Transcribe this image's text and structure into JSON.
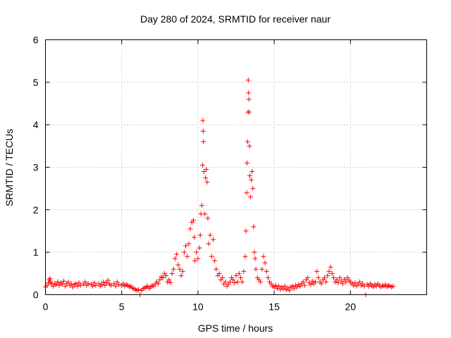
{
  "chart_data": {
    "type": "scatter",
    "title": "Day 280 of 2024, SRMTID for receiver naur",
    "xlabel": "GPS time / hours",
    "ylabel": "SRMTID / TECUs",
    "xlim": [
      0,
      25
    ],
    "ylim": [
      0,
      6
    ],
    "xticks": [
      0,
      5,
      10,
      15,
      20
    ],
    "yticks": [
      0,
      1,
      2,
      3,
      4,
      5,
      6
    ],
    "grid": true,
    "marker": "plus",
    "series": [
      {
        "name": "SRMTID",
        "color": "#ff0000",
        "points": [
          [
            0.0,
            0.18
          ],
          [
            0.1,
            0.22
          ],
          [
            0.2,
            0.28
          ],
          [
            0.25,
            0.35
          ],
          [
            0.3,
            0.38
          ],
          [
            0.35,
            0.3
          ],
          [
            0.4,
            0.25
          ],
          [
            0.5,
            0.2
          ],
          [
            0.6,
            0.26
          ],
          [
            0.7,
            0.24
          ],
          [
            0.8,
            0.3
          ],
          [
            0.9,
            0.22
          ],
          [
            1.0,
            0.28
          ],
          [
            1.1,
            0.25
          ],
          [
            1.2,
            0.32
          ],
          [
            1.3,
            0.2
          ],
          [
            1.4,
            0.26
          ],
          [
            1.5,
            0.3
          ],
          [
            1.6,
            0.22
          ],
          [
            1.7,
            0.25
          ],
          [
            1.8,
            0.18
          ],
          [
            1.9,
            0.24
          ],
          [
            2.0,
            0.26
          ],
          [
            2.1,
            0.2
          ],
          [
            2.2,
            0.28
          ],
          [
            2.3,
            0.22
          ],
          [
            2.5,
            0.25
          ],
          [
            2.6,
            0.3
          ],
          [
            2.7,
            0.22
          ],
          [
            2.8,
            0.26
          ],
          [
            3.0,
            0.24
          ],
          [
            3.1,
            0.2
          ],
          [
            3.2,
            0.28
          ],
          [
            3.3,
            0.22
          ],
          [
            3.5,
            0.26
          ],
          [
            3.6,
            0.2
          ],
          [
            3.7,
            0.24
          ],
          [
            3.8,
            0.3
          ],
          [
            3.9,
            0.22
          ],
          [
            4.0,
            0.28
          ],
          [
            4.1,
            0.34
          ],
          [
            4.2,
            0.25
          ],
          [
            4.3,
            0.22
          ],
          [
            4.5,
            0.26
          ],
          [
            4.6,
            0.2
          ],
          [
            4.7,
            0.3
          ],
          [
            4.8,
            0.24
          ],
          [
            5.0,
            0.22
          ],
          [
            5.1,
            0.26
          ],
          [
            5.2,
            0.2
          ],
          [
            5.3,
            0.24
          ],
          [
            5.4,
            0.22
          ],
          [
            5.5,
            0.18
          ],
          [
            5.6,
            0.2
          ],
          [
            5.7,
            0.16
          ],
          [
            5.8,
            0.14
          ],
          [
            5.9,
            0.12
          ],
          [
            6.0,
            0.1
          ],
          [
            6.1,
            0.12
          ],
          [
            6.2,
            0.0
          ],
          [
            6.3,
            0.1
          ],
          [
            6.4,
            0.14
          ],
          [
            6.5,
            0.16
          ],
          [
            6.6,
            0.18
          ],
          [
            6.7,
            0.2
          ],
          [
            6.8,
            0.15
          ],
          [
            6.9,
            0.18
          ],
          [
            7.0,
            0.22
          ],
          [
            7.1,
            0.2
          ],
          [
            7.2,
            0.25
          ],
          [
            7.3,
            0.3
          ],
          [
            7.4,
            0.26
          ],
          [
            7.5,
            0.35
          ],
          [
            7.6,
            0.42
          ],
          [
            7.7,
            0.4
          ],
          [
            7.8,
            0.5
          ],
          [
            7.9,
            0.45
          ],
          [
            8.0,
            0.3
          ],
          [
            8.1,
            0.35
          ],
          [
            8.2,
            0.28
          ],
          [
            8.3,
            0.5
          ],
          [
            8.4,
            0.6
          ],
          [
            8.5,
            0.85
          ],
          [
            8.6,
            0.95
          ],
          [
            8.7,
            0.7
          ],
          [
            8.8,
            0.6
          ],
          [
            8.9,
            0.45
          ],
          [
            9.0,
            0.55
          ],
          [
            9.1,
            1.0
          ],
          [
            9.2,
            1.15
          ],
          [
            9.3,
            0.9
          ],
          [
            9.4,
            1.2
          ],
          [
            9.5,
            1.55
          ],
          [
            9.6,
            1.7
          ],
          [
            9.7,
            1.75
          ],
          [
            9.75,
            1.35
          ],
          [
            9.8,
            0.8
          ],
          [
            9.9,
            1.0
          ],
          [
            10.0,
            0.85
          ],
          [
            10.1,
            1.1
          ],
          [
            10.15,
            1.4
          ],
          [
            10.2,
            1.9
          ],
          [
            10.25,
            2.1
          ],
          [
            10.3,
            3.05
          ],
          [
            10.32,
            4.1
          ],
          [
            10.34,
            3.85
          ],
          [
            10.36,
            3.6
          ],
          [
            10.4,
            2.9
          ],
          [
            10.45,
            1.9
          ],
          [
            10.5,
            2.75
          ],
          [
            10.55,
            2.95
          ],
          [
            10.6,
            2.65
          ],
          [
            10.65,
            1.8
          ],
          [
            10.7,
            1.2
          ],
          [
            10.8,
            1.4
          ],
          [
            10.9,
            0.9
          ],
          [
            11.0,
            1.3
          ],
          [
            11.1,
            0.8
          ],
          [
            11.2,
            0.6
          ],
          [
            11.3,
            0.45
          ],
          [
            11.4,
            0.5
          ],
          [
            11.5,
            0.35
          ],
          [
            11.6,
            0.4
          ],
          [
            11.7,
            0.25
          ],
          [
            11.8,
            0.3
          ],
          [
            11.9,
            0.2
          ],
          [
            12.0,
            0.25
          ],
          [
            12.1,
            0.3
          ],
          [
            12.2,
            0.4
          ],
          [
            12.3,
            0.35
          ],
          [
            12.4,
            0.28
          ],
          [
            12.5,
            0.45
          ],
          [
            12.6,
            0.3
          ],
          [
            12.7,
            0.5
          ],
          [
            12.8,
            0.4
          ],
          [
            12.9,
            0.3
          ],
          [
            13.0,
            0.55
          ],
          [
            13.1,
            0.9
          ],
          [
            13.15,
            1.5
          ],
          [
            13.2,
            2.4
          ],
          [
            13.22,
            3.1
          ],
          [
            13.25,
            3.6
          ],
          [
            13.28,
            4.3
          ],
          [
            13.3,
            5.05
          ],
          [
            13.32,
            4.75
          ],
          [
            13.34,
            4.6
          ],
          [
            13.36,
            4.3
          ],
          [
            13.38,
            3.5
          ],
          [
            13.4,
            2.8
          ],
          [
            13.45,
            2.3
          ],
          [
            13.5,
            2.7
          ],
          [
            13.55,
            2.9
          ],
          [
            13.6,
            2.5
          ],
          [
            13.65,
            1.6
          ],
          [
            13.7,
            1.0
          ],
          [
            13.75,
            0.85
          ],
          [
            13.8,
            0.6
          ],
          [
            13.9,
            0.4
          ],
          [
            14.0,
            0.35
          ],
          [
            14.1,
            0.3
          ],
          [
            14.2,
            0.6
          ],
          [
            14.3,
            0.9
          ],
          [
            14.4,
            0.75
          ],
          [
            14.5,
            0.55
          ],
          [
            14.6,
            0.4
          ],
          [
            14.7,
            0.3
          ],
          [
            14.8,
            0.25
          ],
          [
            14.9,
            0.2
          ],
          [
            15.0,
            0.18
          ],
          [
            15.1,
            0.22
          ],
          [
            15.2,
            0.15
          ],
          [
            15.3,
            0.2
          ],
          [
            15.4,
            0.12
          ],
          [
            15.5,
            0.18
          ],
          [
            15.6,
            0.14
          ],
          [
            15.7,
            0.2
          ],
          [
            15.8,
            0.12
          ],
          [
            15.9,
            0.16
          ],
          [
            16.0,
            0.1
          ],
          [
            16.1,
            0.18
          ],
          [
            16.2,
            0.2
          ],
          [
            16.3,
            0.14
          ],
          [
            16.4,
            0.22
          ],
          [
            16.5,
            0.18
          ],
          [
            16.6,
            0.24
          ],
          [
            16.7,
            0.2
          ],
          [
            16.8,
            0.26
          ],
          [
            16.9,
            0.3
          ],
          [
            17.0,
            0.22
          ],
          [
            17.1,
            0.35
          ],
          [
            17.2,
            0.4
          ],
          [
            17.3,
            0.28
          ],
          [
            17.4,
            0.24
          ],
          [
            17.5,
            0.32
          ],
          [
            17.6,
            0.26
          ],
          [
            17.7,
            0.3
          ],
          [
            17.8,
            0.55
          ],
          [
            17.9,
            0.4
          ],
          [
            18.0,
            0.3
          ],
          [
            18.1,
            0.26
          ],
          [
            18.2,
            0.35
          ],
          [
            18.3,
            0.4
          ],
          [
            18.4,
            0.3
          ],
          [
            18.5,
            0.45
          ],
          [
            18.6,
            0.55
          ],
          [
            18.7,
            0.65
          ],
          [
            18.8,
            0.5
          ],
          [
            18.9,
            0.4
          ],
          [
            19.0,
            0.3
          ],
          [
            19.1,
            0.35
          ],
          [
            19.2,
            0.28
          ],
          [
            19.3,
            0.4
          ],
          [
            19.4,
            0.32
          ],
          [
            19.5,
            0.26
          ],
          [
            19.6,
            0.36
          ],
          [
            19.7,
            0.3
          ],
          [
            19.8,
            0.4
          ],
          [
            19.9,
            0.34
          ],
          [
            20.0,
            0.3
          ],
          [
            20.1,
            0.26
          ],
          [
            20.2,
            0.22
          ],
          [
            20.3,
            0.28
          ],
          [
            20.4,
            0.2
          ],
          [
            20.5,
            0.25
          ],
          [
            20.6,
            0.3
          ],
          [
            20.7,
            0.22
          ],
          [
            20.8,
            0.26
          ],
          [
            20.9,
            0.2
          ],
          [
            21.0,
            0.0
          ],
          [
            21.1,
            0.24
          ],
          [
            21.2,
            0.2
          ],
          [
            21.3,
            0.26
          ],
          [
            21.4,
            0.22
          ],
          [
            21.5,
            0.18
          ],
          [
            21.6,
            0.24
          ],
          [
            21.7,
            0.2
          ],
          [
            21.8,
            0.26
          ],
          [
            21.9,
            0.22
          ],
          [
            22.0,
            0.18
          ],
          [
            22.1,
            0.22
          ],
          [
            22.2,
            0.2
          ],
          [
            22.3,
            0.24
          ],
          [
            22.4,
            0.18
          ],
          [
            22.5,
            0.22
          ],
          [
            22.6,
            0.2
          ],
          [
            22.7,
            0.18
          ],
          [
            22.8,
            0.2
          ]
        ]
      }
    ]
  }
}
